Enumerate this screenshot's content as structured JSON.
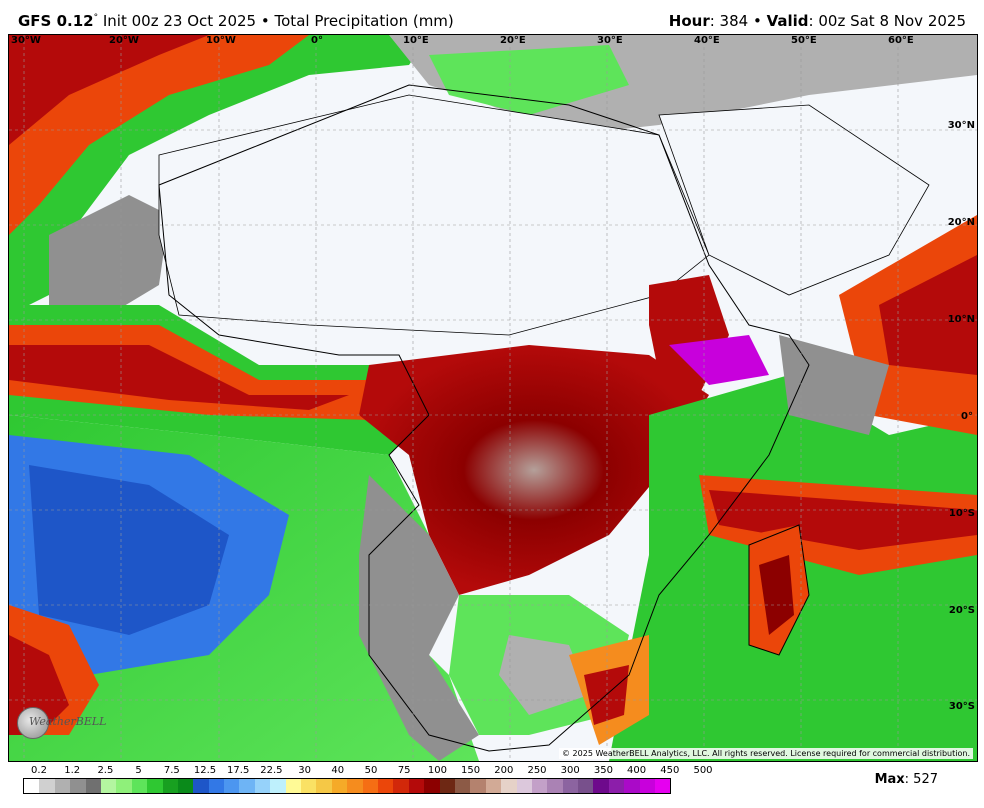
{
  "header": {
    "model": "GFS 0.12",
    "model_sup": "°",
    "init_text": "Init 00z 23 Oct 2025",
    "separator": "•",
    "product": "Total Precipitation (mm)",
    "hour_label": "Hour",
    "hour_value": ": 384",
    "valid_label": "Valid",
    "valid_value": ": 00z Sat 8 Nov 2025"
  },
  "map": {
    "lon_labels": [
      "30°W",
      "20°W",
      "10°W",
      "0°",
      "10°E",
      "20°E",
      "30°E",
      "40°E",
      "50°E",
      "60°E"
    ],
    "lat_labels": [
      "30°N",
      "20°N",
      "10°N",
      "0°",
      "10°S",
      "20°S",
      "30°S"
    ],
    "copyright": "© 2025 WeatherBELL Analytics, LLC. All rights reserved. License required for commercial distribution.",
    "logo_text": "WeatherBELL"
  },
  "legend": {
    "labels": [
      "0.2",
      "1.2",
      "2.5",
      "5",
      "7.5",
      "12.5",
      "17.5",
      "22.5",
      "30",
      "40",
      "50",
      "75",
      "100",
      "150",
      "200",
      "250",
      "300",
      "350",
      "400",
      "450",
      "500"
    ],
    "colors": [
      "#ffffff",
      "#d0d0d0",
      "#b0b0b0",
      "#909090",
      "#707070",
      "#b4f5a0",
      "#8ff07a",
      "#5ee45a",
      "#2fc832",
      "#18a020",
      "#0a8a1a",
      "#1e56c8",
      "#3278e6",
      "#4c96f0",
      "#6eb4f5",
      "#96d2fa",
      "#bef0fc",
      "#fffa96",
      "#fae164",
      "#f5c846",
      "#f5aa28",
      "#f58c1e",
      "#f56e14",
      "#eb460a",
      "#d2280a",
      "#b40a0a",
      "#8c0000",
      "#6e2814",
      "#8c5a46",
      "#b4826e",
      "#d2aa96",
      "#e6d2c8",
      "#dcc8dc",
      "#c3a0c8",
      "#aa82b4",
      "#8c64a0",
      "#78508c",
      "#6e0a8c",
      "#8c1eaa",
      "#aa0ac8",
      "#c800dc",
      "#e600f0"
    ],
    "max_label": "Max",
    "max_value": ": 527"
  }
}
